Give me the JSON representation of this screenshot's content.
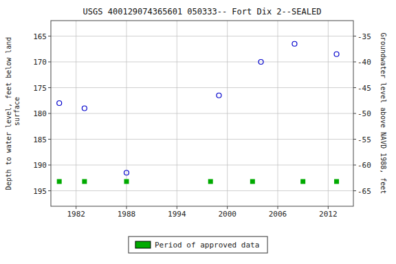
{
  "chart_data": {
    "type": "scatter",
    "title": "USGS 400129074365601 050333-- Fort Dix 2--SEALED",
    "ylabel": "Depth to water level, feet below land\n surface",
    "y2label": "Groundwater level above NAVD 1988, feet",
    "xlim": [
      1979,
      2015
    ],
    "xticks": [
      1982,
      1988,
      1994,
      2000,
      2006,
      2012
    ],
    "ylim": [
      198,
      162
    ],
    "yticks": [
      165,
      170,
      175,
      180,
      185,
      190,
      195
    ],
    "y2lim": [
      -68,
      -32
    ],
    "y2ticks": [
      -35,
      -40,
      -45,
      -50,
      -55,
      -60,
      -65
    ],
    "grid": true,
    "legend": "bottom",
    "series": [
      {
        "color": "#0000cc",
        "marker": "circle",
        "x": [
          1980,
          1983,
          1988,
          1999,
          2004,
          2008,
          2013
        ],
        "values": [
          178,
          179,
          191.5,
          176.5,
          170,
          166.5,
          168.5
        ]
      },
      {
        "name": "Period of approved data",
        "color": "#00aa00",
        "marker": "square",
        "x": [
          1980,
          1983,
          1988,
          1998,
          2003,
          2009,
          2013
        ],
        "values": [
          193.2,
          193.2,
          193.2,
          193.2,
          193.2,
          193.2,
          193.2
        ]
      }
    ]
  }
}
